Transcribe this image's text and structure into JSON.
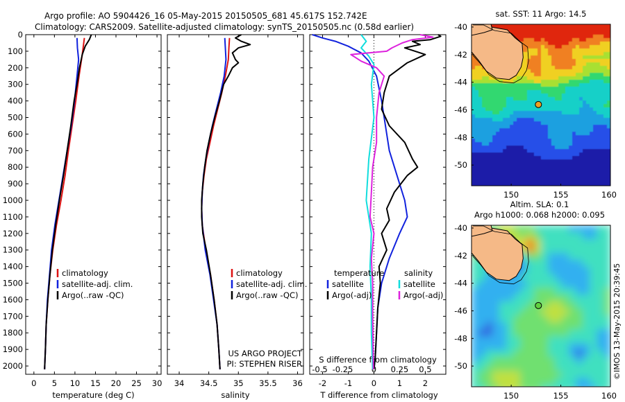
{
  "header": {
    "line1": "Argo profile: AO 5904426_16 05-May-2015 20150505_681 45.617S 152.742E",
    "line2": "Climatology: CARS2009. Satellite-adjusted climatology: synTS_20150505.nc (0.58d earlier)"
  },
  "colors": {
    "climatology": "#dd1111",
    "satellite": "#1122dd",
    "argo": "#000000",
    "salinity_satellite": "#11dddd",
    "salinity_argo": "#dd22dd"
  },
  "chart_data": [
    {
      "type": "line",
      "panel": "temperature",
      "xlabel": "temperature (deg C)",
      "ylabel": "",
      "xlim": [
        -2,
        31
      ],
      "ylim": [
        2050,
        0
      ],
      "xticks": [
        0,
        5,
        10,
        15,
        20,
        25,
        30
      ],
      "yticks": [
        0,
        100,
        200,
        300,
        400,
        500,
        600,
        700,
        800,
        900,
        1000,
        1100,
        1200,
        1300,
        1400,
        1500,
        1600,
        1700,
        1800,
        1900,
        2000
      ],
      "legend": [
        "climatology",
        "satellite-adj. clim.",
        "Argo(..raw -QC)"
      ],
      "series": [
        {
          "name": "climatology",
          "points": [
            [
              12.3,
              20
            ],
            [
              12.0,
              80
            ],
            [
              11.6,
              150
            ],
            [
              11.0,
              250
            ],
            [
              10.2,
              400
            ],
            [
              9.3,
              550
            ],
            [
              8.4,
              700
            ],
            [
              7.6,
              850
            ],
            [
              6.6,
              1000
            ],
            [
              5.5,
              1150
            ],
            [
              4.6,
              1300
            ],
            [
              3.9,
              1450
            ],
            [
              3.4,
              1600
            ],
            [
              3.0,
              1750
            ],
            [
              2.8,
              1900
            ],
            [
              2.6,
              2020
            ]
          ]
        },
        {
          "name": "satellite-adj. clim.",
          "points": [
            [
              10.5,
              20
            ],
            [
              10.6,
              80
            ],
            [
              10.9,
              150
            ],
            [
              10.5,
              250
            ],
            [
              9.9,
              400
            ],
            [
              9.1,
              550
            ],
            [
              8.1,
              700
            ],
            [
              7.1,
              850
            ],
            [
              6.1,
              1000
            ],
            [
              5.1,
              1150
            ],
            [
              4.3,
              1300
            ],
            [
              3.8,
              1450
            ],
            [
              3.3,
              1600
            ],
            [
              3.0,
              1750
            ],
            [
              2.8,
              1900
            ],
            [
              2.6,
              2020
            ]
          ]
        },
        {
          "name": "Argo(..raw -QC)",
          "points": [
            [
              14.0,
              0
            ],
            [
              13.5,
              30
            ],
            [
              12.5,
              70
            ],
            [
              11.8,
              120
            ],
            [
              11.1,
              200
            ],
            [
              10.5,
              300
            ],
            [
              9.8,
              400
            ],
            [
              9.0,
              550
            ],
            [
              8.1,
              700
            ],
            [
              7.2,
              850
            ],
            [
              6.2,
              1000
            ],
            [
              5.3,
              1150
            ],
            [
              4.5,
              1300
            ],
            [
              3.9,
              1450
            ],
            [
              3.4,
              1600
            ],
            [
              3.0,
              1750
            ],
            [
              2.8,
              1900
            ],
            [
              2.6,
              2020
            ]
          ]
        }
      ]
    },
    {
      "type": "line",
      "panel": "salinity",
      "xlabel": "salinity",
      "ylabel": "",
      "xlim": [
        33.8,
        36.1
      ],
      "ylim": [
        2050,
        0
      ],
      "xticks": [
        34,
        34.5,
        35,
        35.5,
        36
      ],
      "legend": [
        "climatology",
        "satellite-adj. clim.",
        "Argo(..raw -QC)"
      ],
      "annotation": [
        "US ARGO PROJECT",
        "PI: STEPHEN RISER"
      ],
      "series": [
        {
          "name": "climatology",
          "points": [
            [
              34.85,
              20
            ],
            [
              34.84,
              80
            ],
            [
              34.83,
              150
            ],
            [
              34.78,
              250
            ],
            [
              34.72,
              350
            ],
            [
              34.65,
              450
            ],
            [
              34.58,
              550
            ],
            [
              34.52,
              650
            ],
            [
              34.46,
              750
            ],
            [
              34.42,
              850
            ],
            [
              34.39,
              950
            ],
            [
              34.38,
              1050
            ],
            [
              34.39,
              1150
            ],
            [
              34.45,
              1300
            ],
            [
              34.53,
              1450
            ],
            [
              34.59,
              1600
            ],
            [
              34.64,
              1750
            ],
            [
              34.67,
              1900
            ],
            [
              34.69,
              2020
            ]
          ]
        },
        {
          "name": "satellite-adj. clim.",
          "points": [
            [
              34.77,
              20
            ],
            [
              34.78,
              80
            ],
            [
              34.79,
              150
            ],
            [
              34.76,
              250
            ],
            [
              34.7,
              350
            ],
            [
              34.63,
              450
            ],
            [
              34.56,
              550
            ],
            [
              34.5,
              650
            ],
            [
              34.45,
              750
            ],
            [
              34.41,
              850
            ],
            [
              34.39,
              950
            ],
            [
              34.38,
              1050
            ],
            [
              34.39,
              1150
            ],
            [
              34.44,
              1300
            ],
            [
              34.52,
              1450
            ],
            [
              34.58,
              1600
            ],
            [
              34.64,
              1750
            ],
            [
              34.67,
              1900
            ],
            [
              34.69,
              2020
            ]
          ]
        },
        {
          "name": "Argo(..raw -QC)",
          "points": [
            [
              35.05,
              0
            ],
            [
              34.95,
              20
            ],
            [
              35.05,
              40
            ],
            [
              35.2,
              60
            ],
            [
              35.0,
              80
            ],
            [
              34.9,
              110
            ],
            [
              34.95,
              150
            ],
            [
              35.0,
              170
            ],
            [
              34.9,
              200
            ],
            [
              34.83,
              250
            ],
            [
              34.75,
              300
            ],
            [
              34.68,
              400
            ],
            [
              34.6,
              500
            ],
            [
              34.53,
              600
            ],
            [
              34.47,
              700
            ],
            [
              34.43,
              800
            ],
            [
              34.4,
              900
            ],
            [
              34.38,
              1000
            ],
            [
              34.38,
              1100
            ],
            [
              34.4,
              1200
            ],
            [
              34.46,
              1300
            ],
            [
              34.53,
              1450
            ],
            [
              34.59,
              1600
            ],
            [
              34.64,
              1750
            ],
            [
              34.67,
              1900
            ],
            [
              34.69,
              2020
            ]
          ]
        }
      ]
    },
    {
      "type": "line",
      "panel": "difference",
      "xlabel": "T difference from climatology",
      "xlabel_top": "S difference from climatology",
      "xlim": [
        -2.5,
        2.8
      ],
      "ylim": [
        2050,
        0
      ],
      "xticks": [
        -2,
        -1,
        0,
        1,
        2
      ],
      "s_ticks": [
        "-0.5",
        "-0.25",
        "0",
        "0.25",
        "0.5"
      ],
      "s_tick_positions": [
        -2,
        -1,
        0,
        1,
        2
      ],
      "legend_left_title": "temperature",
      "legend_right_title": "salinity",
      "legend": [
        "satellite",
        "Argo(-adj)",
        "satellite",
        "Argo(-adj)"
      ],
      "series": [
        {
          "name": "temperature satellite",
          "points": [
            [
              -2.4,
              0
            ],
            [
              -2.0,
              20
            ],
            [
              -1.5,
              40
            ],
            [
              -1.0,
              70
            ],
            [
              -0.5,
              110
            ],
            [
              -0.2,
              160
            ],
            [
              0.1,
              250
            ],
            [
              0.3,
              400
            ],
            [
              0.4,
              500
            ],
            [
              0.6,
              700
            ],
            [
              0.9,
              850
            ],
            [
              1.2,
              1000
            ],
            [
              1.3,
              1100
            ],
            [
              1.0,
              1200
            ],
            [
              0.6,
              1350
            ],
            [
              0.3,
              1500
            ],
            [
              0.15,
              1650
            ],
            [
              0.1,
              1800
            ],
            [
              0.05,
              1950
            ],
            [
              0.0,
              2020
            ]
          ]
        },
        {
          "name": "temperature Argo(-adj)",
          "points": [
            [
              2.5,
              0
            ],
            [
              2.6,
              10
            ],
            [
              2.2,
              30
            ],
            [
              1.5,
              40
            ],
            [
              1.8,
              60
            ],
            [
              1.2,
              80
            ],
            [
              2.0,
              120
            ],
            [
              1.3,
              170
            ],
            [
              0.6,
              250
            ],
            [
              0.4,
              350
            ],
            [
              0.3,
              450
            ],
            [
              0.6,
              550
            ],
            [
              1.2,
              650
            ],
            [
              1.5,
              750
            ],
            [
              1.7,
              800
            ],
            [
              1.3,
              850
            ],
            [
              0.8,
              950
            ],
            [
              0.5,
              1050
            ],
            [
              0.6,
              1120
            ],
            [
              0.3,
              1200
            ],
            [
              0.5,
              1300
            ],
            [
              0.2,
              1400
            ],
            [
              0.25,
              1500
            ],
            [
              0.15,
              1650
            ],
            [
              0.1,
              1800
            ],
            [
              0.05,
              1950
            ],
            [
              0.0,
              2020
            ]
          ]
        },
        {
          "name": "salinity satellite",
          "points": [
            [
              -0.5,
              0
            ],
            [
              -0.3,
              40
            ],
            [
              -0.5,
              80
            ],
            [
              -0.2,
              130
            ],
            [
              0.0,
              180
            ],
            [
              -0.1,
              300
            ],
            [
              0.0,
              500
            ],
            [
              -0.2,
              750
            ],
            [
              -0.3,
              1000
            ],
            [
              -0.1,
              1200
            ],
            [
              -0.15,
              1400
            ],
            [
              -0.1,
              1600
            ],
            [
              -0.1,
              1800
            ],
            [
              -0.05,
              2020
            ]
          ]
        },
        {
          "name": "salinity Argo(-adj)",
          "points": [
            [
              1.8,
              0
            ],
            [
              2.3,
              15
            ],
            [
              1.5,
              30
            ],
            [
              1.1,
              50
            ],
            [
              0.7,
              80
            ],
            [
              0.5,
              100
            ],
            [
              -0.9,
              120
            ],
            [
              -0.5,
              160
            ],
            [
              0.1,
              200
            ],
            [
              0.4,
              250
            ],
            [
              0.2,
              350
            ],
            [
              0.1,
              500
            ],
            [
              0.1,
              650
            ],
            [
              -0.05,
              800
            ],
            [
              -0.1,
              950
            ],
            [
              -0.15,
              1100
            ],
            [
              0.0,
              1200
            ],
            [
              -0.1,
              1350
            ],
            [
              -0.05,
              1500
            ],
            [
              -0.05,
              1700
            ],
            [
              -0.03,
              1900
            ],
            [
              -0.02,
              2020
            ]
          ]
        }
      ]
    },
    {
      "type": "heatmap",
      "panel": "sst-map",
      "title": "sat. SST: 11 Argo: 14.5",
      "xlim": [
        146,
        160
      ],
      "ylim": [
        -51.5,
        -39.8
      ],
      "xticks": [
        150,
        155,
        160
      ],
      "yticks": [
        -40,
        -42,
        -44,
        -46,
        -48,
        -50
      ],
      "marker": [
        152.742,
        -45.617
      ]
    },
    {
      "type": "heatmap",
      "panel": "sla-map",
      "title_line1": "Altim. SLA: 0.1",
      "title_line2": "Argo h1000: 0.068 h2000: 0.095",
      "xlim": [
        146,
        160
      ],
      "ylim": [
        -51.5,
        -39.8
      ],
      "xticks": [
        150,
        155,
        160
      ],
      "yticks": [
        -40,
        -42,
        -44,
        -46,
        -48,
        -50
      ],
      "marker": [
        152.742,
        -45.617
      ]
    }
  ],
  "credit": "©IMOS 13-May-2015 20:39:45"
}
